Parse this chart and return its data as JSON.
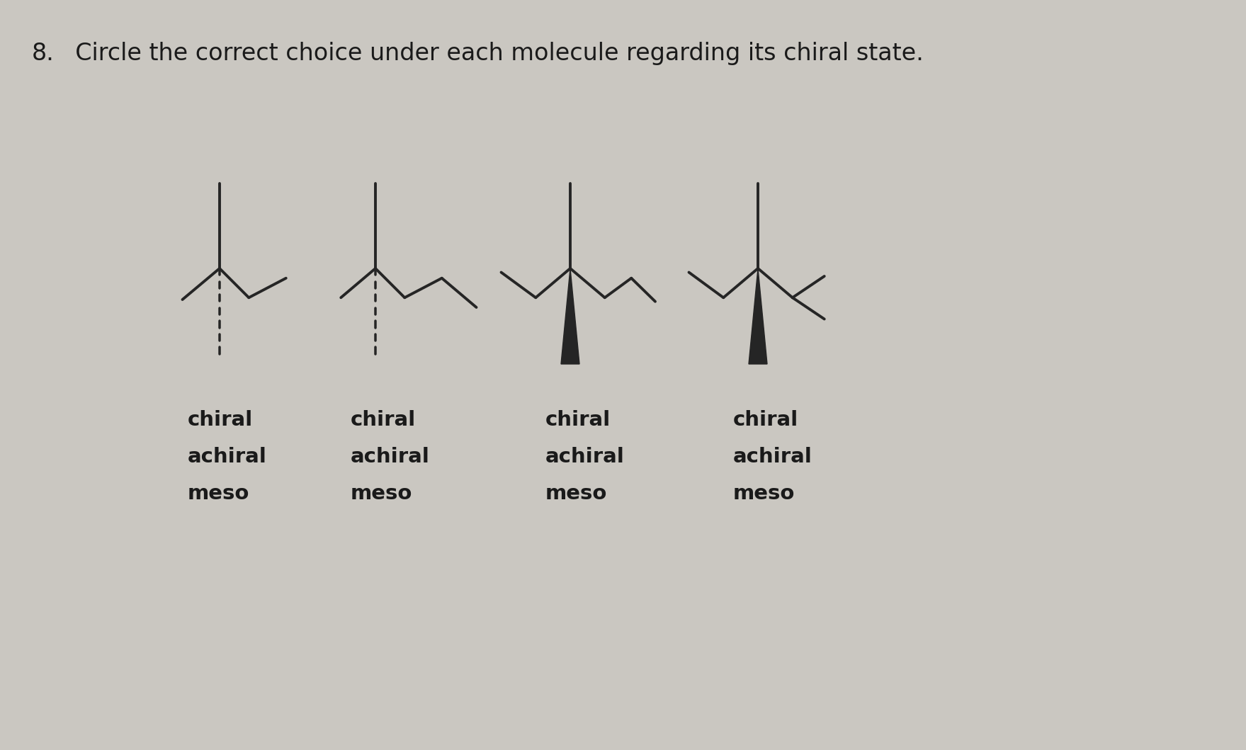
{
  "title_num": "8.",
  "title_text": "  Circle the correct choice under each molecule regarding its chiral state.",
  "background_color": "#cac7c1",
  "title_fontsize": 24,
  "labels": [
    [
      "chiral",
      "achiral",
      "meso"
    ],
    [
      "chiral",
      "achiral",
      "meso"
    ],
    [
      "chiral",
      "achiral",
      "meso"
    ],
    [
      "chiral",
      "achiral",
      "meso"
    ]
  ],
  "text_color": "#1a1a1a",
  "line_color": "#252525",
  "line_width": 2.8
}
